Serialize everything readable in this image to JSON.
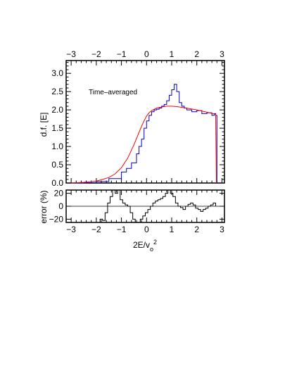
{
  "chart_data": [
    {
      "type": "line",
      "panel": "main",
      "annotation": "Time–averaged",
      "ylabel": "d.f. [E]",
      "xlim": [
        -3.2,
        3.1
      ],
      "ylim": [
        0,
        3.35
      ],
      "xticks": [
        -3,
        -2,
        -1,
        0,
        1,
        2,
        3
      ],
      "xtick_labels": [
        "−3",
        "−2",
        "−1",
        "0",
        "1",
        "2",
        "3"
      ],
      "yticks": [
        0,
        0.5,
        1.0,
        1.5,
        2.0,
        2.5,
        3.0
      ],
      "ytick_labels": [
        "0.0",
        "0.5",
        "1.0",
        "1.5",
        "2.0",
        "2.5",
        "3.0"
      ],
      "grid": false,
      "series": [
        {
          "style": "histogram",
          "color": "#0000cc",
          "x": [
            -3.0,
            -2.5,
            -2.0,
            -1.5,
            -1.0,
            -0.8,
            -0.6,
            -0.4,
            -0.3,
            -0.2,
            -0.1,
            0.0,
            0.1,
            0.2,
            0.3,
            0.4,
            0.5,
            0.6,
            0.7,
            0.8,
            0.9,
            1.0,
            1.1,
            1.2,
            1.3,
            1.4,
            1.5,
            1.6,
            1.8,
            2.0,
            2.2,
            2.4,
            2.6,
            2.7,
            2.75,
            2.8
          ],
          "y": [
            0.0,
            0.01,
            0.04,
            0.12,
            0.3,
            0.4,
            0.55,
            0.8,
            1.0,
            1.2,
            1.5,
            1.7,
            1.85,
            1.95,
            2.0,
            2.02,
            2.05,
            2.1,
            2.15,
            2.25,
            2.4,
            2.55,
            2.7,
            2.5,
            2.2,
            2.1,
            2.05,
            2.0,
            1.95,
            1.98,
            1.9,
            1.92,
            1.85,
            1.9,
            1.85,
            0.0
          ]
        },
        {
          "style": "smooth",
          "color": "#ff0000",
          "x": [
            -3.0,
            -2.5,
            -2.0,
            -1.5,
            -1.25,
            -1.0,
            -0.75,
            -0.5,
            -0.35,
            -0.2,
            -0.1,
            0.0,
            0.1,
            0.2,
            0.4,
            0.6,
            0.8,
            1.0,
            1.2,
            1.5,
            2.0,
            2.5,
            2.75,
            2.78
          ],
          "y": [
            0.0,
            0.02,
            0.05,
            0.15,
            0.25,
            0.42,
            0.68,
            1.05,
            1.3,
            1.55,
            1.7,
            1.83,
            1.92,
            1.98,
            2.05,
            2.08,
            2.1,
            2.1,
            2.09,
            2.06,
            2.0,
            1.92,
            1.88,
            0.0
          ]
        }
      ]
    },
    {
      "type": "line",
      "panel": "residual",
      "ylabel": "error (%)",
      "xlabel": "2E/v₀²",
      "xlabel_main": "2E/v",
      "xlabel_sub": "o",
      "xlabel_sup": "2",
      "xlim": [
        -3.2,
        3.1
      ],
      "ylim": [
        -25,
        25
      ],
      "xticks": [
        -3,
        -2,
        -1,
        0,
        1,
        2,
        3
      ],
      "xtick_labels": [
        "−3",
        "−2",
        "−1",
        "0",
        "1",
        "2",
        "3"
      ],
      "yticks": [
        20,
        0,
        -20
      ],
      "ytick_labels": [
        "20",
        "0",
        "−20"
      ],
      "zero_line": true,
      "grid": false,
      "series": [
        {
          "style": "histogram",
          "color": "#000000",
          "x": [
            -1.95,
            -1.85,
            -1.75,
            -1.65,
            -1.55,
            -1.45,
            -1.35,
            -1.25,
            -1.15,
            -1.05,
            -0.95,
            -0.85,
            -0.75,
            -0.65,
            -0.55,
            -0.45,
            -0.35,
            -0.25,
            -0.15,
            -0.05,
            0.05,
            0.15,
            0.25,
            0.35,
            0.45,
            0.55,
            0.65,
            0.75,
            0.85,
            0.95,
            1.05,
            1.15,
            1.25,
            1.35,
            1.45,
            1.55,
            1.65,
            1.75,
            1.85,
            1.95,
            2.05,
            2.15,
            2.25,
            2.35,
            2.45,
            2.55,
            2.65,
            2.75
          ],
          "y": [
            -25,
            -20,
            -22,
            -10,
            5,
            15,
            25,
            20,
            25,
            10,
            5,
            2,
            0,
            -10,
            -20,
            -25,
            -25,
            -20,
            -15,
            -10,
            -5,
            0,
            5,
            8,
            10,
            12,
            15,
            20,
            25,
            20,
            15,
            5,
            0,
            -2,
            -5,
            0,
            3,
            5,
            2,
            -3,
            -5,
            -8,
            -5,
            -3,
            0,
            2,
            5,
            0
          ]
        }
      ]
    }
  ]
}
